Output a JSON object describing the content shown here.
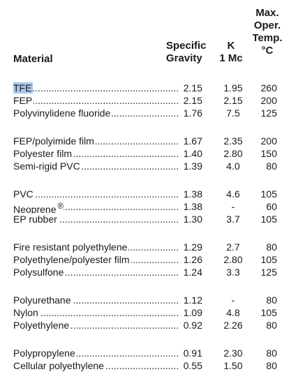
{
  "headers": {
    "material": "Material",
    "specific_gravity": [
      "Specific",
      "Gravity"
    ],
    "k": [
      "K",
      "1 Mc"
    ],
    "max_temp": [
      "Max.",
      "Oper.",
      "Temp.",
      "°C"
    ]
  },
  "groups": [
    [
      {
        "material": "TFE",
        "sg": "2.15",
        "k": "1.95",
        "temp": "260",
        "highlighted": true
      },
      {
        "material": "FEP",
        "sg": "2.15",
        "k": "2.15",
        "temp": "200"
      },
      {
        "material": "Polyvinylidene fluoride",
        "sg": "1.76",
        "k": "7.5",
        "temp": "125"
      }
    ],
    [
      {
        "material": "FEP/polyimide film",
        "sg": "1.67",
        "k": "2.35",
        "temp": "200"
      },
      {
        "material": "Polyester film",
        "sg": "1.40",
        "k": "2.80",
        "temp": "150"
      },
      {
        "material": "Semi-rigid PVC",
        "sg": "1.39",
        "k": "4.0",
        "temp": "80"
      }
    ],
    [
      {
        "material": "PVC",
        "sg": "1.38",
        "k": "4.6",
        "temp": "105"
      },
      {
        "material": "Neoprene",
        "sup": "®",
        "sg": "1.38",
        "k": "-",
        "temp": "60"
      },
      {
        "material": "EP rubber",
        "sg": "1.30",
        "k": "3.7",
        "temp": "105"
      }
    ],
    [
      {
        "material": "Fire resistant polyethylene",
        "sg": "1.29",
        "k": "2.7",
        "temp": "80"
      },
      {
        "material": "Polyethylene/polyester film",
        "sg": "1.26",
        "k": "2.80",
        "temp": "105"
      },
      {
        "material": "Polysulfone",
        "sg": "1.24",
        "k": "3.3",
        "temp": "125"
      }
    ],
    [
      {
        "material": "Polyurethane",
        "sg": "1.12",
        "k": "-",
        "temp": "80"
      },
      {
        "material": "Nylon",
        "sg": "1.09",
        "k": "4.8",
        "temp": "105"
      },
      {
        "material": "Polyethylene",
        "sg": "0.92",
        "k": "2.26",
        "temp": "80"
      }
    ],
    [
      {
        "material": "Polypropylene",
        "sg": "0.91",
        "k": "2.30",
        "temp": "80"
      },
      {
        "material": "Cellular polyethylene",
        "sg": "0.55",
        "k": "1.50",
        "temp": "80"
      }
    ]
  ],
  "colors": {
    "highlight": "#a9c7e8",
    "text": "#1a1a1a"
  }
}
